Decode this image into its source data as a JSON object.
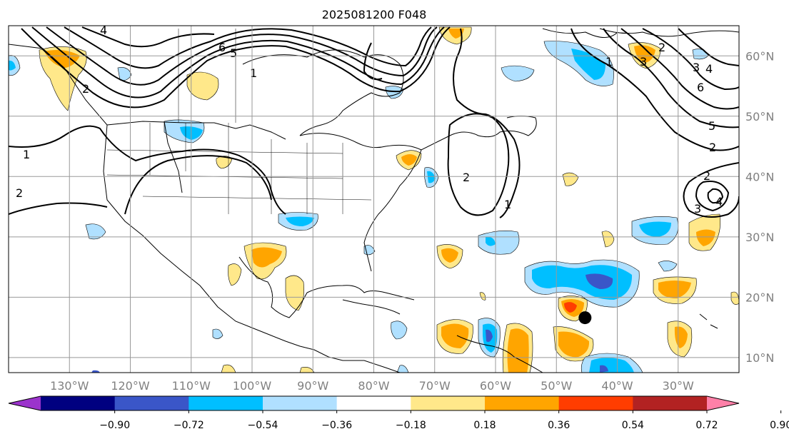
{
  "title": "2025081200 F048",
  "map": {
    "lon_range": [
      -140,
      -20
    ],
    "lat_range": [
      7.5,
      65
    ],
    "gridlines": true,
    "lon_labels": [
      "130°W",
      "120°W",
      "110°W",
      "100°W",
      "90°W",
      "80°W",
      "70°W",
      "60°W",
      "50°W",
      "40°W",
      "30°W"
    ],
    "lon_values": [
      -130,
      -120,
      -110,
      -100,
      -90,
      -80,
      -70,
      -60,
      -50,
      -40,
      -30
    ],
    "lat_labels": [
      "60°N",
      "50°N",
      "40°N",
      "30°N",
      "20°N",
      "10°N"
    ],
    "lat_values": [
      60,
      50,
      40,
      30,
      20,
      10
    ],
    "storm_marker": {
      "lon": -45.3,
      "lat": 16.6
    },
    "contour_labels": [
      "4",
      "6",
      "5",
      "1",
      "2",
      "1",
      "2",
      "1",
      "2",
      "5",
      "2",
      "6",
      "4",
      "3",
      "2",
      "3",
      "1",
      "2",
      "4",
      "3"
    ]
  },
  "colorbar": {
    "tick_labels": [
      "−0.90",
      "−0.72",
      "−0.54",
      "−0.36",
      "−0.18",
      "0.18",
      "0.36",
      "0.54",
      "0.72",
      "0.90"
    ],
    "levels": [
      -0.9,
      -0.72,
      -0.54,
      -0.36,
      -0.18,
      0.18,
      0.36,
      0.54,
      0.72,
      0.9
    ],
    "colors": [
      "#9b33cc",
      "#000080",
      "#3a56c8",
      "#00bfff",
      "#b0e0ff",
      "#ffffff",
      "#ffe88a",
      "#ffa500",
      "#ff3d00",
      "#b22222",
      "#ff80a8"
    ],
    "extend": "both"
  },
  "colors": {
    "land_outline": "#000000",
    "grid": "#999999",
    "contour": "#000000"
  }
}
